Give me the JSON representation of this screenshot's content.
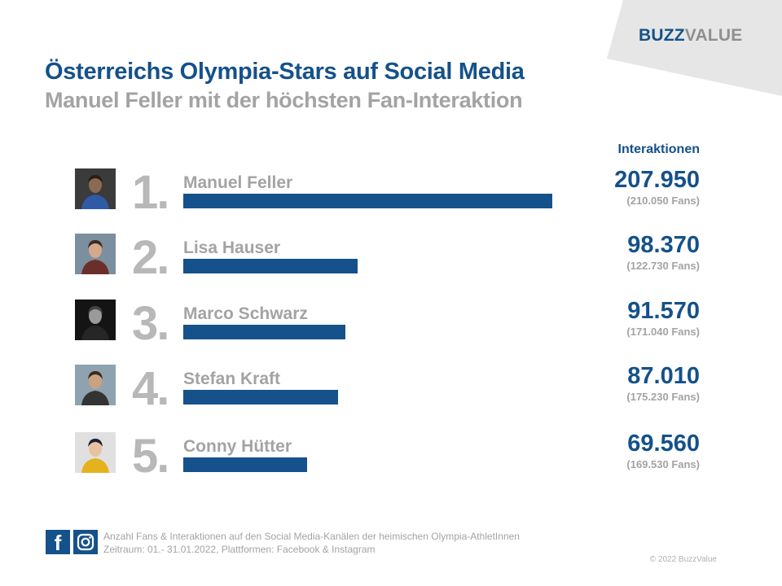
{
  "logo": {
    "part1": "BUZZ",
    "part2": "VALUE"
  },
  "colors": {
    "accent": "#15518a",
    "gray_text": "#a3a3a3",
    "rank_gray": "#b8b8b8"
  },
  "chart_data": {
    "type": "bar",
    "orientation": "horizontal",
    "title": "Österreichs Olympia-Stars auf Social Media",
    "subtitle": "Manuel Feller mit der höchsten Fan-Interaktion",
    "value_label": "Interaktionen",
    "categories": [
      "Manuel Feller",
      "Lisa Hauser",
      "Marco Schwarz",
      "Stefan Kraft",
      "Conny Hütter"
    ],
    "ranks": [
      "1.",
      "2.",
      "3.",
      "4.",
      "5."
    ],
    "values": [
      207950,
      98370,
      91570,
      87010,
      69560
    ],
    "value_labels": [
      "207.950",
      "98.370",
      "91.570",
      "87.010",
      "69.560"
    ],
    "fans_labels": [
      "(210.050 Fans)",
      "(122.730 Fans)",
      "(171.040 Fans)",
      "(175.230 Fans)",
      "(169.530 Fans)"
    ],
    "xlim": [
      0,
      207950
    ]
  },
  "footer": {
    "line1": "Anzahl Fans & Interaktionen auf den Social Media-Kanälen der heimischen Olympia-AthletInnen",
    "line2": "Zeitraum: 01.- 31.01.2022, Plattformen: Facebook & Instagram",
    "copyright": "© 2022 BuzzValue",
    "facebook_icon": "f"
  },
  "icons": {
    "facebook": "facebook-icon",
    "instagram": "instagram-icon"
  }
}
